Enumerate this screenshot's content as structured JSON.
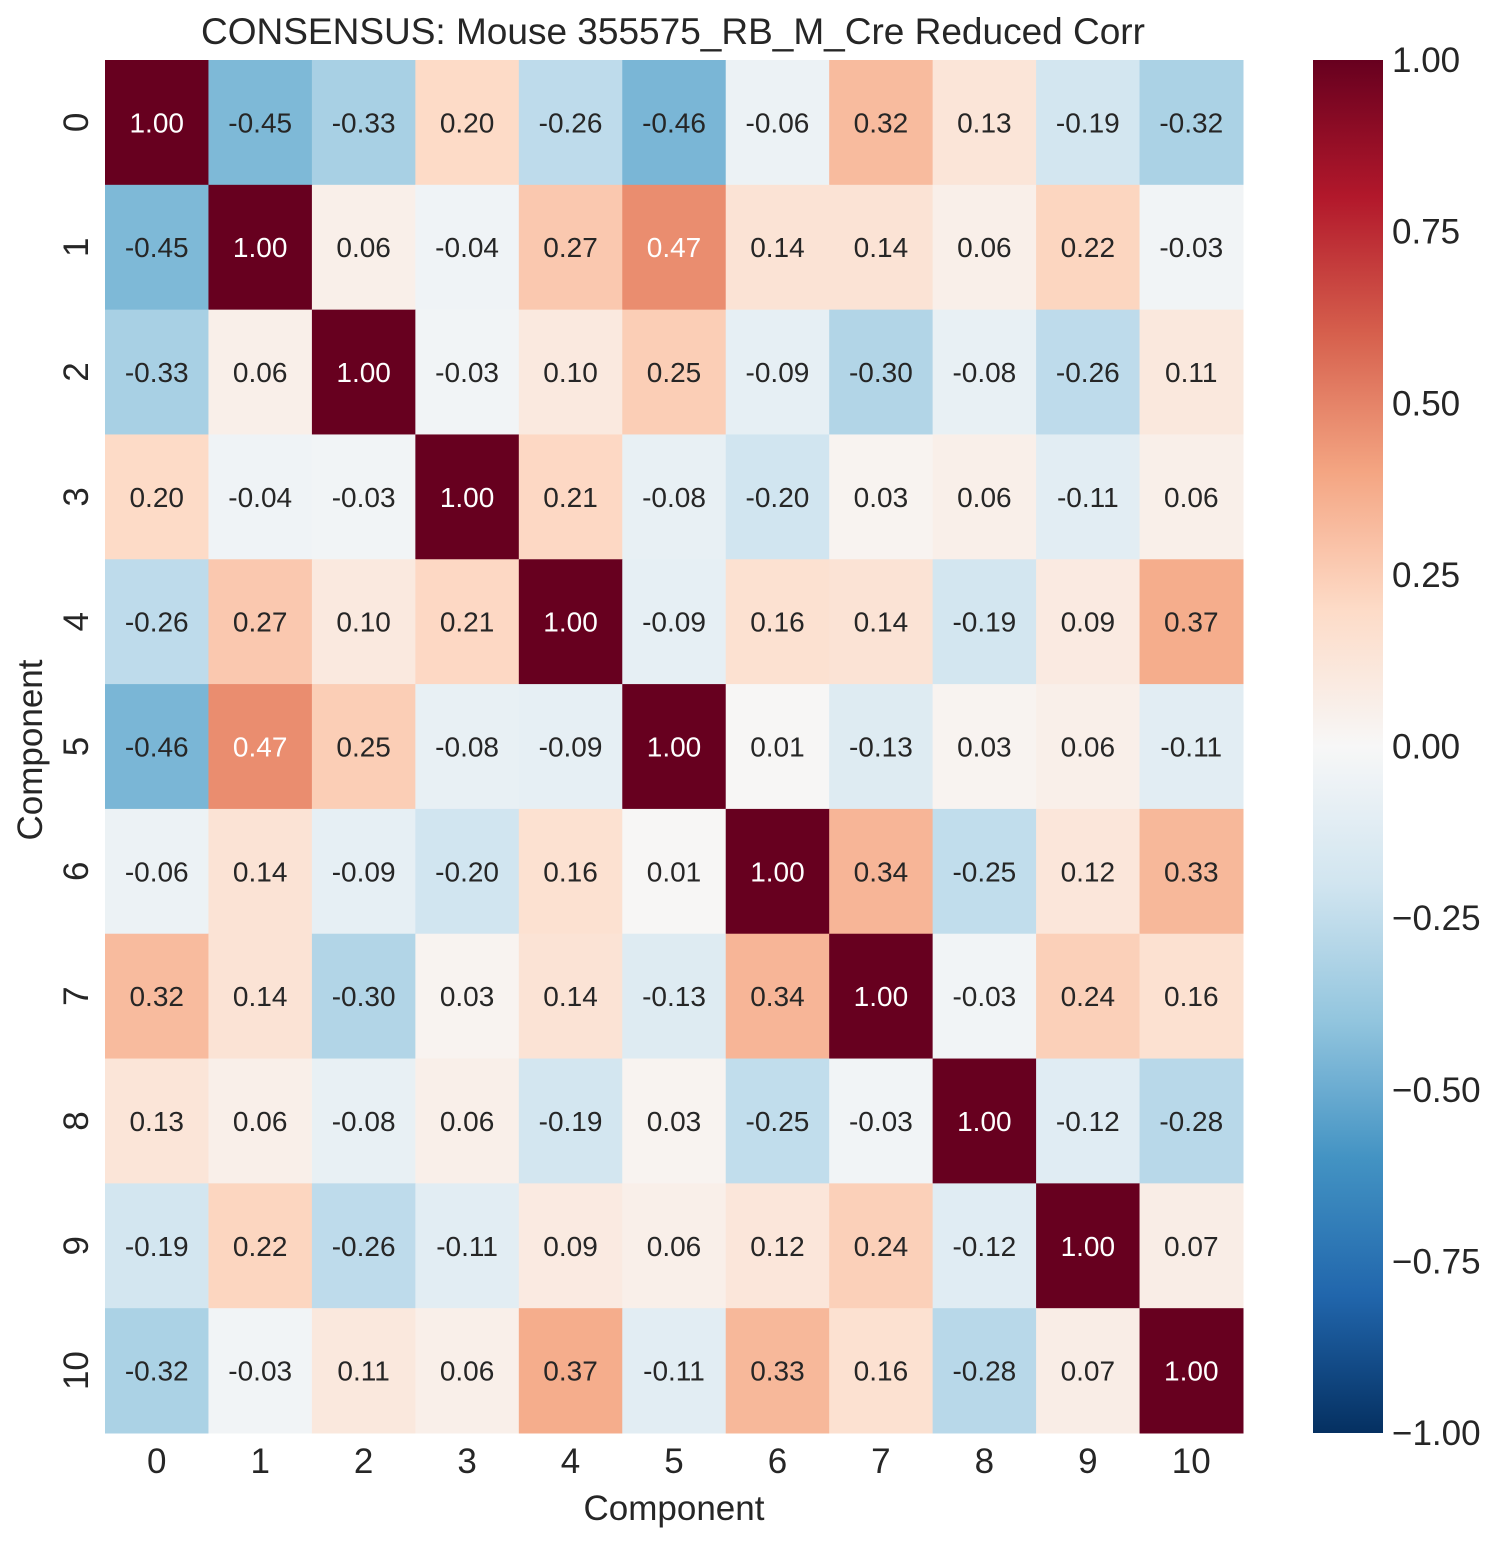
{
  "chart_data": {
    "type": "heatmap",
    "title": "CONSENSUS: Mouse 355575_RB_M_Cre Reduced Corr",
    "xlabel": "Component",
    "ylabel": "Component",
    "x_categories": [
      "0",
      "1",
      "2",
      "3",
      "4",
      "5",
      "6",
      "7",
      "8",
      "9",
      "10"
    ],
    "y_categories": [
      "0",
      "1",
      "2",
      "3",
      "4",
      "5",
      "6",
      "7",
      "8",
      "9",
      "10"
    ],
    "values": [
      [
        1.0,
        -0.45,
        -0.33,
        0.2,
        -0.26,
        -0.46,
        -0.06,
        0.32,
        0.13,
        -0.19,
        -0.32
      ],
      [
        -0.45,
        1.0,
        0.06,
        -0.04,
        0.27,
        0.47,
        0.14,
        0.14,
        0.06,
        0.22,
        -0.03
      ],
      [
        -0.33,
        0.06,
        1.0,
        -0.03,
        0.1,
        0.25,
        -0.09,
        -0.3,
        -0.08,
        -0.26,
        0.11
      ],
      [
        0.2,
        -0.04,
        -0.03,
        1.0,
        0.21,
        -0.08,
        -0.2,
        0.03,
        0.06,
        -0.11,
        0.06
      ],
      [
        -0.26,
        0.27,
        0.1,
        0.21,
        1.0,
        -0.09,
        0.16,
        0.14,
        -0.19,
        0.09,
        0.37
      ],
      [
        -0.46,
        0.47,
        0.25,
        -0.08,
        -0.09,
        1.0,
        0.01,
        -0.13,
        0.03,
        0.06,
        -0.11
      ],
      [
        -0.06,
        0.14,
        -0.09,
        -0.2,
        0.16,
        0.01,
        1.0,
        0.34,
        -0.25,
        0.12,
        0.33
      ],
      [
        0.32,
        0.14,
        -0.3,
        0.03,
        0.14,
        -0.13,
        0.34,
        1.0,
        -0.03,
        0.24,
        0.16
      ],
      [
        0.13,
        0.06,
        -0.08,
        0.06,
        -0.19,
        0.03,
        -0.25,
        -0.03,
        1.0,
        -0.12,
        -0.28
      ],
      [
        -0.19,
        0.22,
        -0.26,
        -0.11,
        0.09,
        0.06,
        0.12,
        0.24,
        -0.12,
        1.0,
        0.07
      ],
      [
        -0.32,
        -0.03,
        0.11,
        0.06,
        0.37,
        -0.11,
        0.33,
        0.16,
        -0.28,
        0.07,
        1.0
      ]
    ],
    "annotation_format": "0.00",
    "colormap": "RdBu_r",
    "vmin": -1.0,
    "vmax": 1.0,
    "colorbar_ticks": [
      "1.00",
      "0.75",
      "0.50",
      "0.25",
      "0.00",
      "−0.25",
      "−0.50",
      "−0.75",
      "−1.00"
    ],
    "colorbar_tick_values": [
      1.0,
      0.75,
      0.5,
      0.25,
      0.0,
      -0.25,
      -0.5,
      -0.75,
      -1.0
    ],
    "colorbar_position": "right",
    "grid": false
  }
}
